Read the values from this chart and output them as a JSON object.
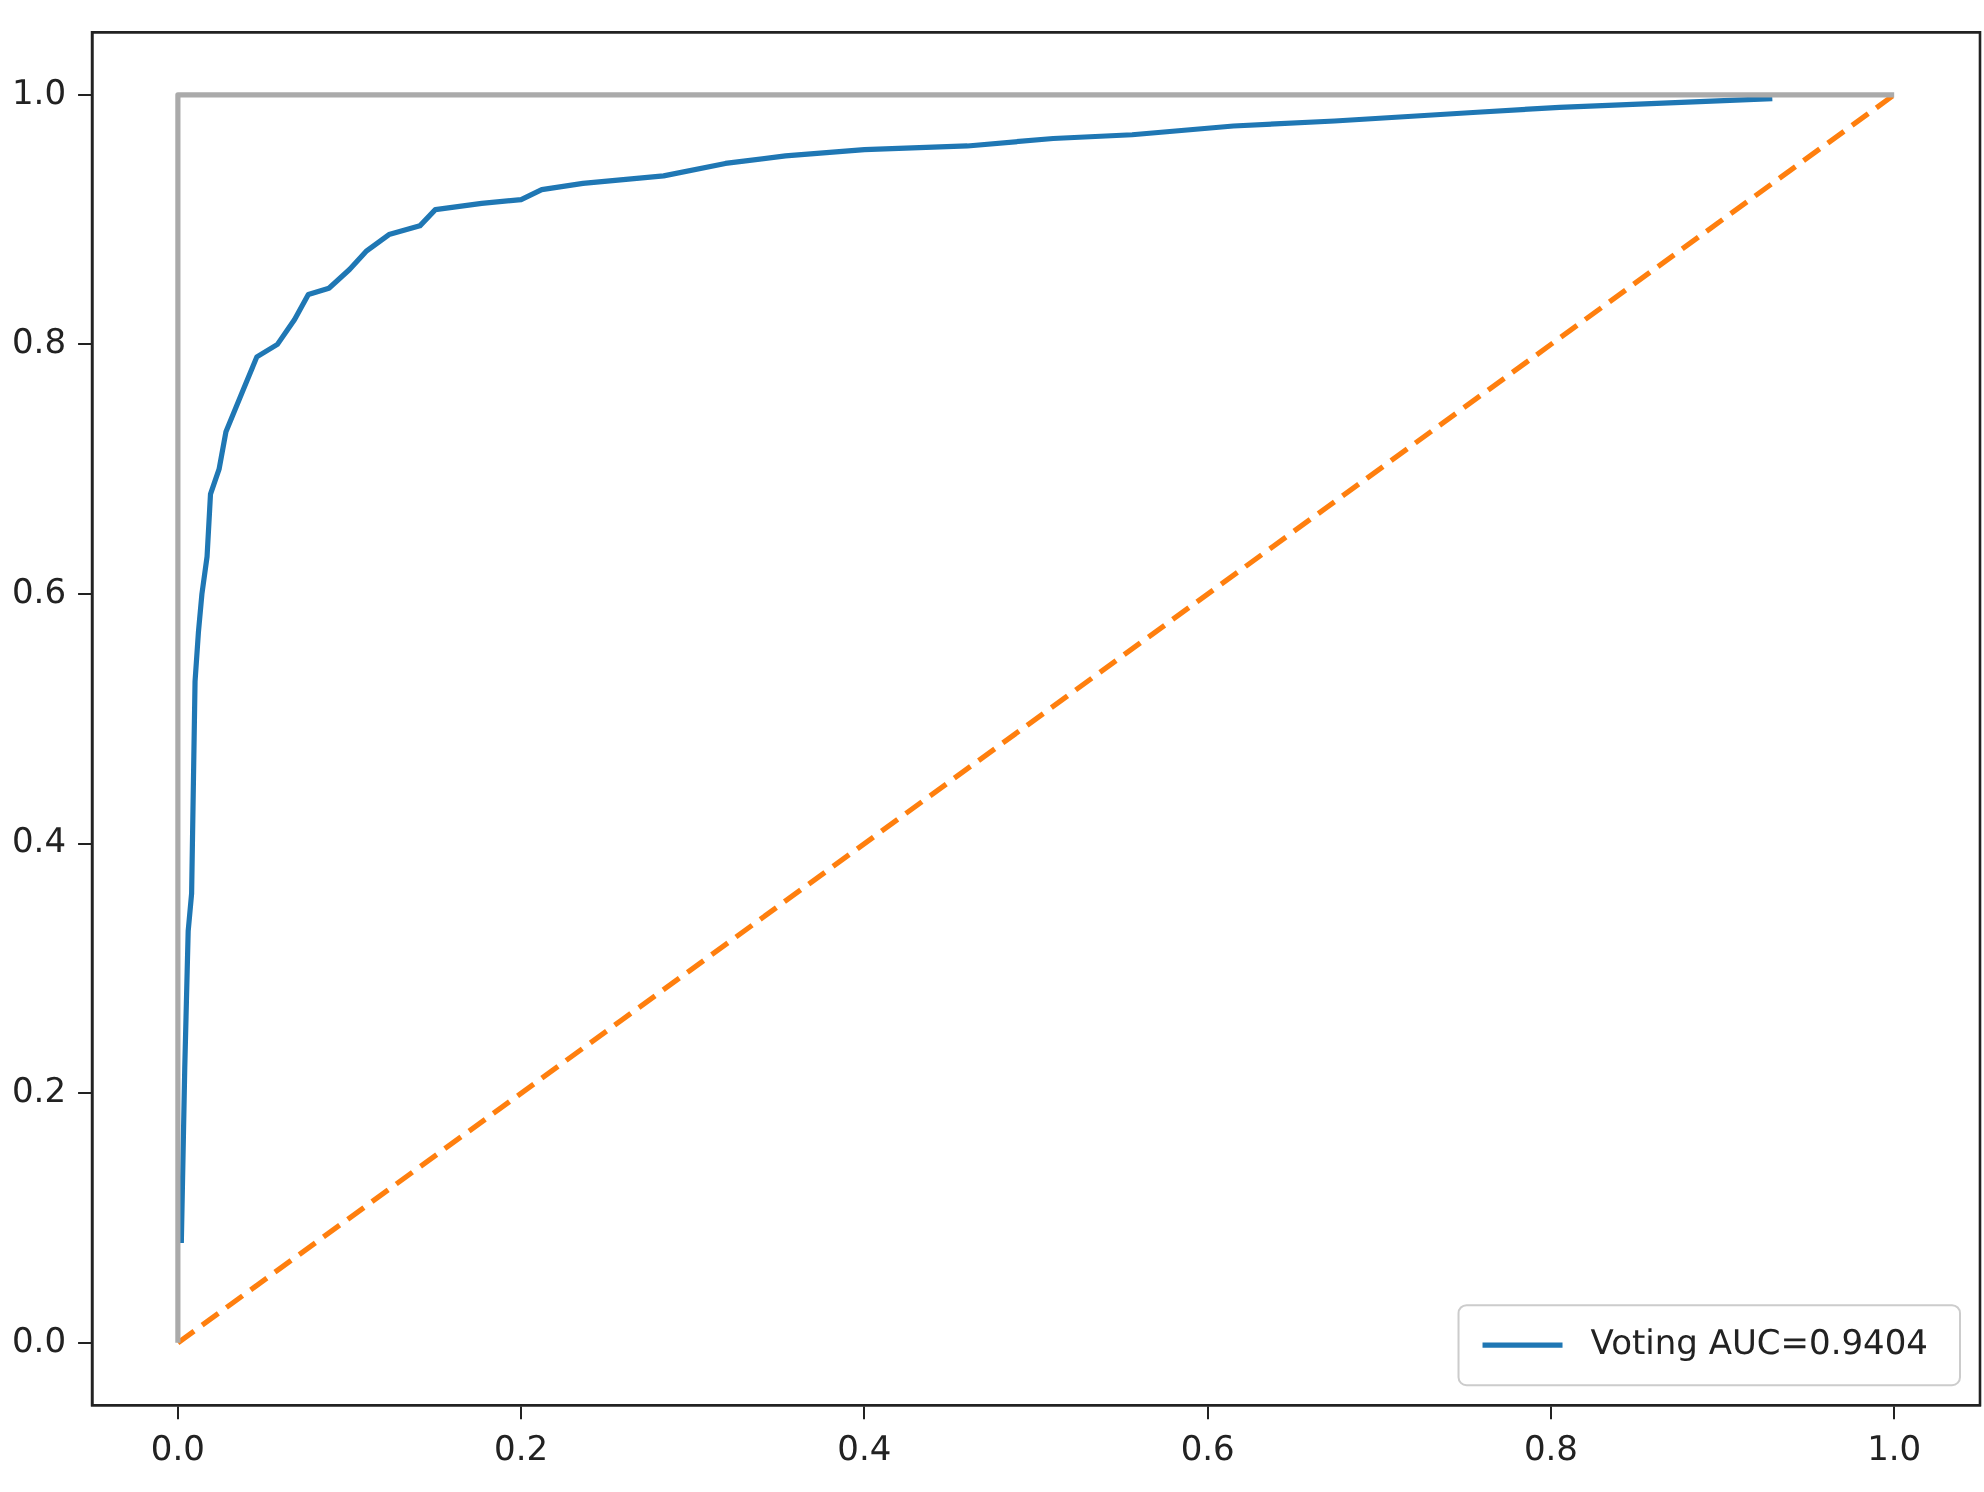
{
  "chart_data": {
    "type": "line",
    "xlim": [
      -0.05,
      1.05
    ],
    "ylim": [
      -0.05,
      1.05
    ],
    "xticks": [
      {
        "value": 0,
        "label": "0.0"
      },
      {
        "value": 0.2,
        "label": "0.2"
      },
      {
        "value": 0.4,
        "label": "0.4"
      },
      {
        "value": 0.6,
        "label": "0.6"
      },
      {
        "value": 0.8,
        "label": "0.8"
      },
      {
        "value": 1,
        "label": "1.0"
      }
    ],
    "yticks": [
      {
        "value": 0,
        "label": "0.0"
      },
      {
        "value": 0.2,
        "label": "0.2"
      },
      {
        "value": 0.4,
        "label": "0.4"
      },
      {
        "value": 0.6,
        "label": "0.6"
      },
      {
        "value": 0.8,
        "label": "0.8"
      },
      {
        "value": 1,
        "label": "1.0"
      }
    ],
    "grid": false,
    "legend": "bottom right",
    "marker": "none",
    "series": [
      {
        "name": "Voting AUC=0.9404",
        "color": "#1f77b4",
        "line_style": "solid",
        "x": [
          0.002,
          0.004,
          0.006,
          0.008,
          0.01,
          0.012,
          0.014,
          0.017,
          0.019,
          0.024,
          0.028,
          0.034,
          0.04,
          0.046,
          0.058,
          0.068,
          0.076,
          0.088,
          0.1,
          0.11,
          0.123,
          0.141,
          0.15,
          0.177,
          0.2,
          0.212,
          0.236,
          0.283,
          0.319,
          0.354,
          0.4,
          0.46,
          0.51,
          0.556,
          0.615,
          0.674,
          0.757,
          0.805,
          0.876,
          0.929
        ],
        "values": [
          0.08,
          0.22,
          0.33,
          0.36,
          0.53,
          0.57,
          0.6,
          0.63,
          0.68,
          0.7,
          0.73,
          0.75,
          0.77,
          0.79,
          0.8,
          0.82,
          0.84,
          0.845,
          0.86,
          0.875,
          0.888,
          0.895,
          0.908,
          0.913,
          0.916,
          0.924,
          0.929,
          0.935,
          0.945,
          0.951,
          0.956,
          0.959,
          0.965,
          0.968,
          0.975,
          0.979,
          0.986,
          0.99,
          0.994,
          0.997
        ]
      },
      {
        "color": "#ff7f0e",
        "line_style": "dashed",
        "x": [
          0,
          1
        ],
        "values": [
          0,
          1
        ]
      },
      {
        "color": "#aaaaaa",
        "line_style": "solid",
        "x": [
          0,
          0,
          1
        ],
        "values": [
          0,
          1,
          1
        ]
      }
    ]
  }
}
